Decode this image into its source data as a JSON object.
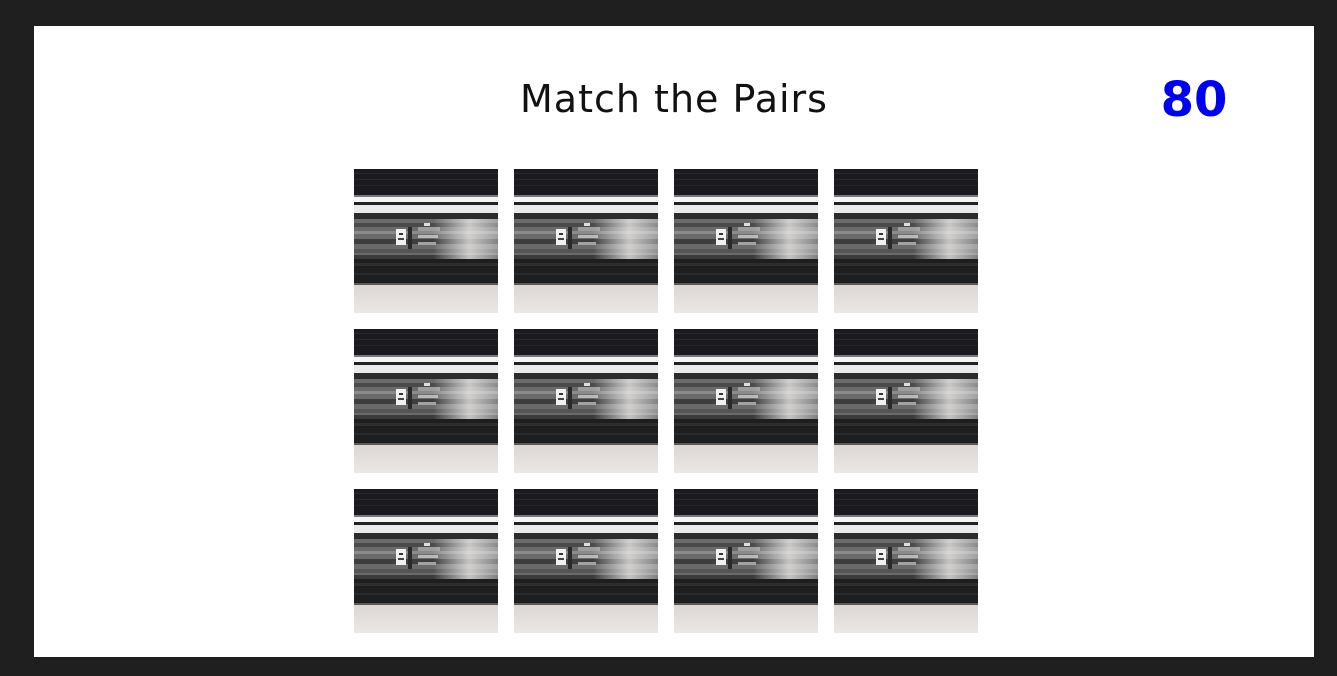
{
  "game": {
    "title": "Match the Pairs",
    "score": "80",
    "score_color": "#0000ee",
    "cards": [
      {
        "state": "face-down"
      },
      {
        "state": "face-down"
      },
      {
        "state": "face-down"
      },
      {
        "state": "face-down"
      },
      {
        "state": "face-down"
      },
      {
        "state": "face-down"
      },
      {
        "state": "face-down"
      },
      {
        "state": "face-down"
      },
      {
        "state": "face-down"
      },
      {
        "state": "face-down"
      },
      {
        "state": "face-down"
      },
      {
        "state": "face-down"
      }
    ]
  }
}
